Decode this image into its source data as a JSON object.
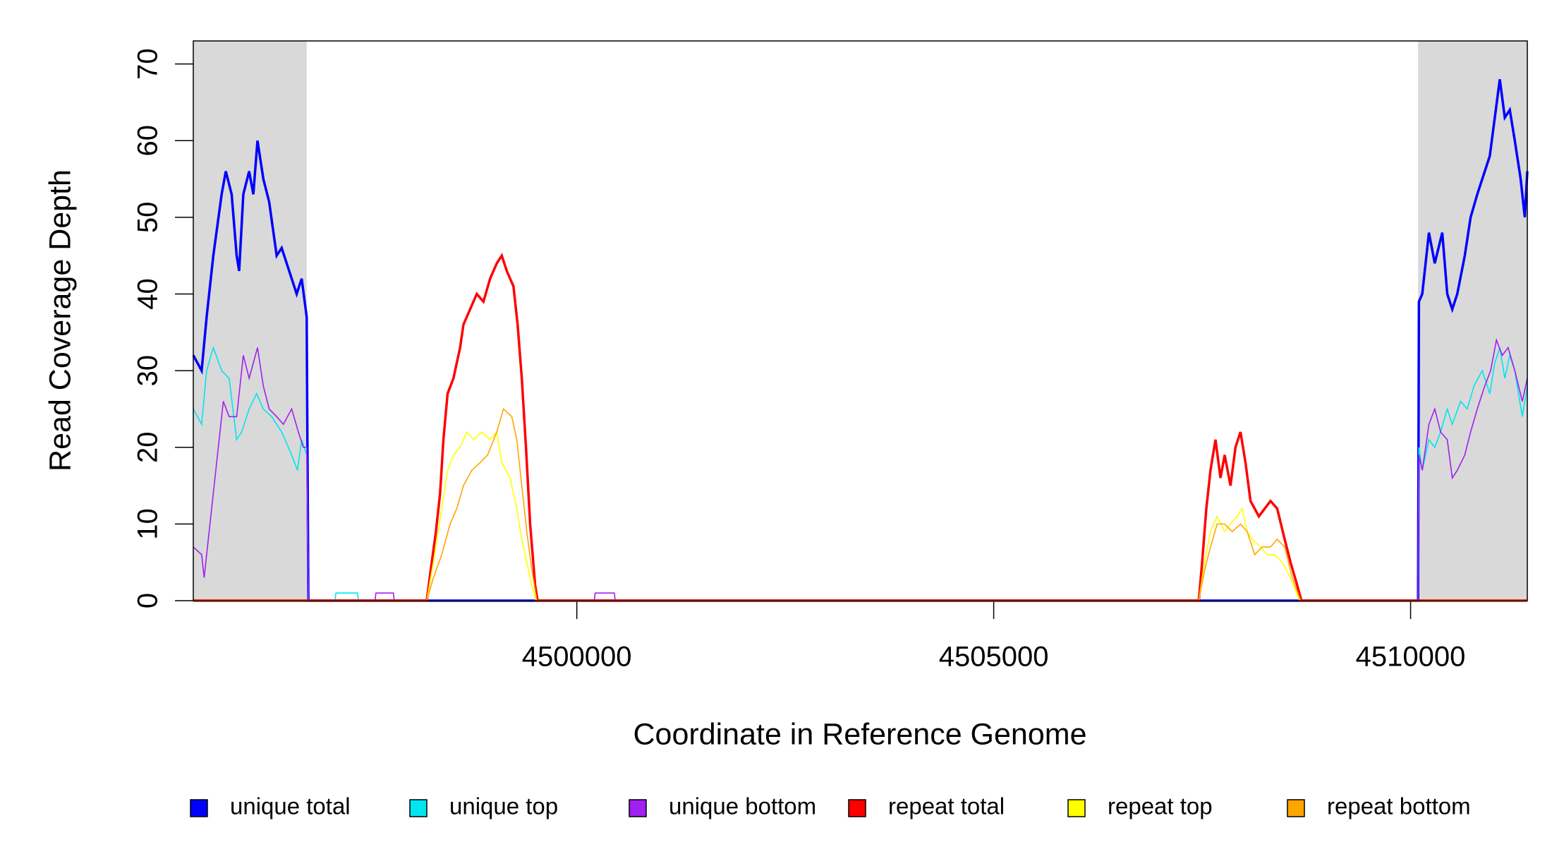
{
  "chart_data": {
    "type": "line",
    "step_style": "coverage",
    "xlabel": "Coordinate in Reference Genome",
    "ylabel": "Read Coverage Depth",
    "xlim": [
      4495400,
      4511400
    ],
    "ylim": [
      0,
      73
    ],
    "xticks": [
      4500000,
      4505000,
      4510000
    ],
    "yticks": [
      0,
      10,
      20,
      30,
      40,
      50,
      60,
      70
    ],
    "shaded_ranges": [
      [
        4495400,
        4496760
      ],
      [
        4510090,
        4511400
      ]
    ],
    "shade_color": "#d9d9d9",
    "legend": "bottom",
    "series": [
      {
        "name": "unique total",
        "color": "#0000ff",
        "linewidth": 3.5,
        "x": [
          4495400,
          4495500,
          4495560,
          4495640,
          4495740,
          4495790,
          4495860,
          4495920,
          4495950,
          4496000,
          4496070,
          4496120,
          4496170,
          4496240,
          4496310,
          4496400,
          4496460,
          4496550,
          4496640,
          4496700,
          4496760,
          4496780,
          4510090,
          4510100,
          4510140,
          4510220,
          4510290,
          4510380,
          4510440,
          4510500,
          4510560,
          4510650,
          4510720,
          4510800,
          4510860,
          4510950,
          4511010,
          4511070,
          4511130,
          4511190,
          4511250,
          4511320,
          4511370,
          4511400
        ],
        "values": [
          32,
          30,
          37,
          45,
          53,
          56,
          53,
          45,
          43,
          53,
          56,
          53,
          60,
          55,
          52,
          45,
          46,
          43,
          40,
          42,
          37,
          0,
          0,
          39,
          40,
          48,
          44,
          48,
          40,
          38,
          40,
          45,
          50,
          53,
          55,
          58,
          63,
          68,
          63,
          64,
          60,
          55,
          50,
          56
        ]
      },
      {
        "name": "unique top",
        "color": "#00e5ee",
        "linewidth": 1.6,
        "x": [
          4495400,
          4495500,
          4495560,
          4495640,
          4495740,
          4495830,
          4495920,
          4495980,
          4496070,
          4496160,
          4496240,
          4496340,
          4496460,
          4496580,
          4496650,
          4496700,
          4496760,
          4496780,
          4497100,
          4497110,
          4497370,
          4497380,
          4510090,
          4510100,
          4510140,
          4510220,
          4510290,
          4510360,
          4510440,
          4510500,
          4510600,
          4510680,
          4510760,
          4510860,
          4510950,
          4511010,
          4511070,
          4511130,
          4511190,
          4511250,
          4511340,
          4511400
        ],
        "values": [
          25,
          23,
          30,
          33,
          30,
          29,
          21,
          22,
          25,
          27,
          25,
          24,
          22,
          19,
          17,
          21,
          19,
          0,
          0,
          1,
          1,
          0,
          0,
          20,
          17,
          21,
          20,
          22,
          25,
          23,
          26,
          25,
          28,
          30,
          27,
          31,
          33,
          29,
          32,
          30,
          24,
          28
        ]
      },
      {
        "name": "unique bottom",
        "color": "#a020f0",
        "linewidth": 1.6,
        "x": [
          4495400,
          4495500,
          4495530,
          4495570,
          4495640,
          4495700,
          4495760,
          4495830,
          4495920,
          4496000,
          4496070,
          4496170,
          4496240,
          4496310,
          4496400,
          4496480,
          4496580,
          4496660,
          4496720,
          4496760,
          4496780,
          4497580,
          4497590,
          4497800,
          4497810,
          4500210,
          4500220,
          4500450,
          4500460,
          4510090,
          4510100,
          4510140,
          4510220,
          4510290,
          4510360,
          4510440,
          4510500,
          4510560,
          4510650,
          4510720,
          4510800,
          4510890,
          4510960,
          4511030,
          4511100,
          4511170,
          4511250,
          4511340,
          4511400
        ],
        "values": [
          7,
          6,
          3,
          7,
          14,
          20,
          26,
          24,
          24,
          32,
          29,
          33,
          28,
          25,
          24,
          23,
          25,
          22,
          20,
          20,
          0,
          0,
          1,
          1,
          0,
          0,
          1,
          1,
          0,
          0,
          19,
          17,
          23,
          25,
          22,
          21,
          16,
          17,
          19,
          22,
          25,
          28,
          30,
          34,
          32,
          33,
          30,
          26,
          29
        ]
      },
      {
        "name": "repeat total",
        "color": "#ff0000",
        "linewidth": 3.5,
        "x": [
          4495400,
          4498200,
          4498260,
          4498310,
          4498360,
          4498400,
          4498450,
          4498520,
          4498600,
          4498640,
          4498720,
          4498800,
          4498880,
          4498960,
          4499040,
          4499100,
          4499160,
          4499240,
          4499290,
          4499340,
          4499390,
          4499440,
          4499500,
          4499530,
          4507460,
          4507500,
          4507550,
          4507600,
          4507660,
          4507720,
          4507770,
          4507840,
          4507900,
          4507960,
          4508020,
          4508080,
          4508180,
          4508250,
          4508320,
          4508400,
          4508490,
          4508560,
          4508640,
          4508690,
          4511400
        ],
        "values": [
          0,
          0,
          5,
          9,
          14,
          21,
          27,
          29,
          33,
          36,
          38,
          40,
          39,
          42,
          44,
          45,
          43,
          41,
          36,
          29,
          20,
          10,
          2,
          0,
          0,
          5,
          12,
          17,
          21,
          16,
          19,
          15,
          20,
          22,
          18,
          13,
          11,
          12,
          13,
          12,
          8,
          5,
          2,
          0,
          0
        ]
      },
      {
        "name": "repeat top",
        "color": "#ffff00",
        "linewidth": 1.6,
        "x": [
          4495400,
          4498200,
          4498280,
          4498380,
          4498450,
          4498520,
          4498600,
          4498680,
          4498760,
          4498860,
          4498960,
          4499040,
          4499100,
          4499200,
          4499280,
          4499340,
          4499400,
          4499460,
          4499510,
          4507460,
          4507530,
          4507600,
          4507680,
          4507770,
          4507840,
          4507920,
          4507980,
          4508040,
          4508100,
          4508200,
          4508280,
          4508370,
          4508460,
          4508560,
          4508670,
          4511400
        ],
        "values": [
          0,
          0,
          5,
          12,
          17,
          19,
          20,
          22,
          21,
          22,
          21,
          22,
          18,
          16,
          12,
          8,
          5,
          2,
          0,
          0,
          5,
          9,
          11,
          9,
          10,
          11,
          12,
          9,
          8,
          7,
          6,
          6,
          5,
          3,
          0,
          0
        ]
      },
      {
        "name": "repeat bottom",
        "color": "#ffa500",
        "linewidth": 1.6,
        "x": [
          4495400,
          4498200,
          4498280,
          4498380,
          4498480,
          4498560,
          4498640,
          4498740,
          4498840,
          4498930,
          4499040,
          4499120,
          4499220,
          4499280,
          4499340,
          4499400,
          4499460,
          4499520,
          4507460,
          4507530,
          4507600,
          4507680,
          4507770,
          4507860,
          4507960,
          4508040,
          4508130,
          4508220,
          4508320,
          4508400,
          4508490,
          4508580,
          4508680,
          4511400
        ],
        "values": [
          0,
          0,
          3,
          6,
          10,
          12,
          15,
          17,
          18,
          19,
          22,
          25,
          24,
          21,
          15,
          9,
          4,
          0,
          0,
          4,
          7,
          10,
          10,
          9,
          10,
          9,
          6,
          7,
          7,
          8,
          7,
          3,
          0,
          0
        ]
      }
    ]
  }
}
